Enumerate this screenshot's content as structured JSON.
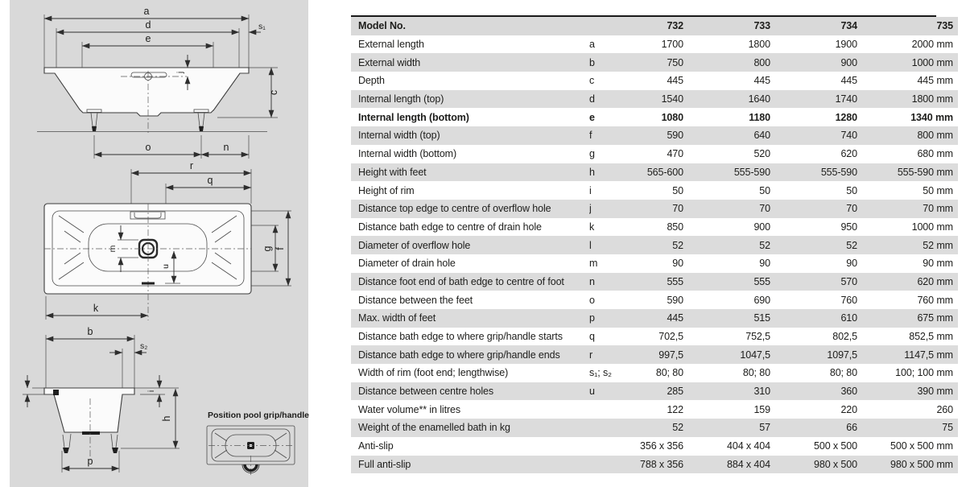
{
  "colors": {
    "panel_bg": "#d9d9d9",
    "row_alt": "#dcdcdc",
    "header_bg": "#d9d9d9",
    "line": "#3c3c3c",
    "text": "#1d1d1b"
  },
  "table": {
    "header": {
      "label": "Model No.",
      "models": [
        "732",
        "733",
        "734",
        "735"
      ]
    },
    "rows": [
      {
        "label": "External length",
        "letter": "a",
        "values": [
          "1700",
          "1800",
          "1900",
          "2000"
        ],
        "unit": "mm",
        "bold": false
      },
      {
        "label": "External width",
        "letter": "b",
        "values": [
          "750",
          "800",
          "900",
          "1000"
        ],
        "unit": "mm",
        "bold": false
      },
      {
        "label": "Depth",
        "letter": "c",
        "values": [
          "445",
          "445",
          "445",
          "445"
        ],
        "unit": "mm",
        "bold": false
      },
      {
        "label": "Internal length (top)",
        "letter": "d",
        "values": [
          "1540",
          "1640",
          "1740",
          "1800"
        ],
        "unit": "mm",
        "bold": false
      },
      {
        "label": "Internal length (bottom)",
        "letter": "e",
        "values": [
          "1080",
          "1180",
          "1280",
          "1340"
        ],
        "unit": "mm",
        "bold": true
      },
      {
        "label": "Internal width (top)",
        "letter": "f",
        "values": [
          "590",
          "640",
          "740",
          "800"
        ],
        "unit": "mm",
        "bold": false
      },
      {
        "label": "Internal width (bottom)",
        "letter": "g",
        "values": [
          "470",
          "520",
          "620",
          "680"
        ],
        "unit": "mm",
        "bold": false
      },
      {
        "label": "Height with feet",
        "letter": "h",
        "values": [
          "565-600",
          "555-590",
          "555-590",
          "555-590"
        ],
        "unit": "mm",
        "bold": false
      },
      {
        "label": "Height of rim",
        "letter": "i",
        "values": [
          "50",
          "50",
          "50",
          "50"
        ],
        "unit": "mm",
        "bold": false
      },
      {
        "label": "Distance top edge to centre of overflow hole",
        "letter": "j",
        "values": [
          "70",
          "70",
          "70",
          "70"
        ],
        "unit": "mm",
        "bold": false
      },
      {
        "label": "Distance bath edge to centre of drain hole",
        "letter": "k",
        "values": [
          "850",
          "900",
          "950",
          "1000"
        ],
        "unit": "mm",
        "bold": false
      },
      {
        "label": "Diameter of overflow hole",
        "letter": "l",
        "values": [
          "52",
          "52",
          "52",
          "52"
        ],
        "unit": "mm",
        "bold": false
      },
      {
        "label": "Diameter of drain hole",
        "letter": "m",
        "values": [
          "90",
          "90",
          "90",
          "90"
        ],
        "unit": "mm",
        "bold": false
      },
      {
        "label": "Distance foot end of bath edge to centre of foot",
        "letter": "n",
        "values": [
          "555",
          "555",
          "570",
          "620"
        ],
        "unit": "mm",
        "bold": false
      },
      {
        "label": "Distance between the feet",
        "letter": "o",
        "values": [
          "590",
          "690",
          "760",
          "760"
        ],
        "unit": "mm",
        "bold": false
      },
      {
        "label": "Max. width of feet",
        "letter": "p",
        "values": [
          "445",
          "515",
          "610",
          "675"
        ],
        "unit": "mm",
        "bold": false
      },
      {
        "label": "Distance bath edge to where grip/handle starts",
        "letter": "q",
        "values": [
          "702,5",
          "752,5",
          "802,5",
          "852,5"
        ],
        "unit": "mm",
        "bold": false
      },
      {
        "label": "Distance bath edge to where grip/handle ends",
        "letter": "r",
        "values": [
          "997,5",
          "1047,5",
          "1097,5",
          "1147,5"
        ],
        "unit": "mm",
        "bold": false
      },
      {
        "label": "Width of rim (foot end; lengthwise)",
        "letter": "s₁; s₂",
        "values": [
          "80; 80",
          "80; 80",
          "80; 80",
          "100; 100"
        ],
        "unit": "mm",
        "bold": false
      },
      {
        "label": "Distance between centre holes",
        "letter": "u",
        "values": [
          "285",
          "310",
          "360",
          "390"
        ],
        "unit": "mm",
        "bold": false
      },
      {
        "label": "Water volume** in litres",
        "letter": "",
        "values": [
          "122",
          "159",
          "220",
          "260"
        ],
        "unit": "",
        "bold": false
      },
      {
        "label": "Weight of the enamelled bath in kg",
        "letter": "",
        "values": [
          "52",
          "57",
          "66",
          "75"
        ],
        "unit": "",
        "bold": false
      },
      {
        "label": "Anti-slip",
        "letter": "",
        "values": [
          "356 x 356",
          "404 x 404",
          "500 x 500",
          "500 x 500"
        ],
        "unit": "mm",
        "bold": false
      },
      {
        "label": "Full anti-slip",
        "letter": "",
        "values": [
          "788 x 356",
          "884 x 404",
          "980 x 500",
          "980 x 500"
        ],
        "unit": "mm",
        "bold": false
      }
    ]
  },
  "diagrams": {
    "dims": {
      "a": "a",
      "b": "b",
      "c": "c",
      "d": "d",
      "e": "e",
      "f": "f",
      "g": "g",
      "h": "h",
      "i": "i",
      "j": "j",
      "k": "k",
      "m": "m",
      "n": "n",
      "o": "o",
      "p": "p",
      "q": "q",
      "r": "r",
      "u": "u",
      "s1": "s₁",
      "s2": "s₂"
    },
    "detail_caption": "Position pool grip/handle"
  }
}
